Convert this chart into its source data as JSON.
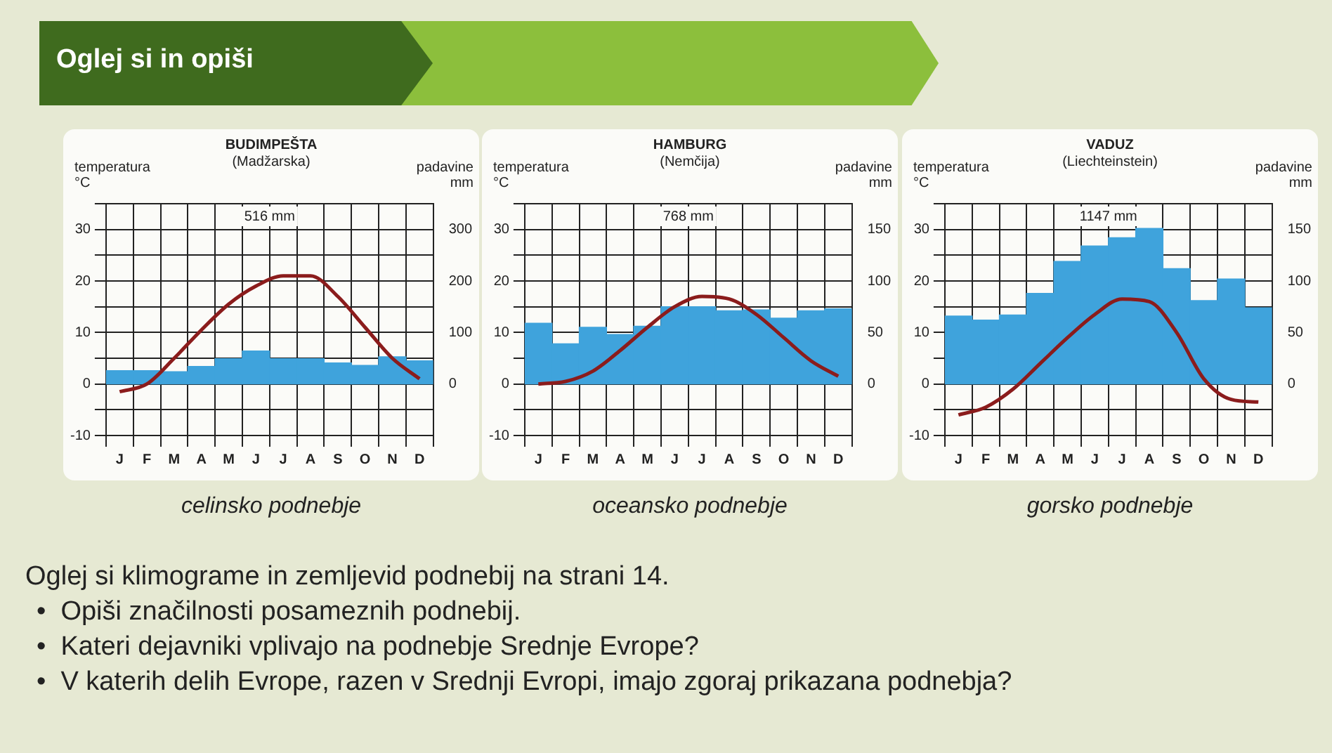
{
  "chart_data": [
    {
      "type": "bar",
      "title": "BUDIMPEŠTA",
      "subtitle": "(Madžarska)",
      "ylabel": "temperatura °C",
      "y2label": "padavine mm",
      "annotations": [
        "516 mm",
        "celinsko podnebje"
      ],
      "categories": [
        "J",
        "F",
        "M",
        "A",
        "M",
        "J",
        "J",
        "A",
        "S",
        "O",
        "N",
        "D"
      ],
      "series": [
        {
          "type": "bar",
          "axis": "y2",
          "color": "#3fa3dc",
          "values": [
            26,
            26,
            24,
            34,
            49,
            64,
            49,
            49,
            41,
            36,
            53,
            45
          ]
        },
        {
          "type": "line",
          "axis": "y",
          "color": "#8b1c1c",
          "values": [
            -1.5,
            0,
            5,
            10.5,
            15.5,
            19,
            21,
            21,
            17,
            11,
            5,
            1
          ]
        }
      ],
      "ylim": [
        -10,
        35
      ],
      "yticks": [
        -10,
        {
          "value": -5,
          "label": null
        },
        0,
        {
          "value": 5,
          "label": null
        },
        10,
        {
          "value": 15,
          "label": null
        },
        20,
        {
          "value": 25,
          "label": null
        },
        30,
        {
          "value": 35,
          "label": null
        }
      ],
      "y2lim": [
        -100,
        350
      ],
      "y2ticks": [
        0,
        100,
        200,
        300
      ],
      "grid": true,
      "legend": false
    },
    {
      "type": "bar",
      "title": "HAMBURG",
      "subtitle": "(Nemčija)",
      "ylabel": "temperatura °C",
      "y2label": "padavine mm",
      "annotations": [
        "768 mm",
        "oceansko podnebje"
      ],
      "categories": [
        "J",
        "F",
        "M",
        "A",
        "M",
        "J",
        "J",
        "A",
        "S",
        "O",
        "N",
        "D"
      ],
      "series": [
        {
          "type": "bar",
          "axis": "y2",
          "color": "#3fa3dc",
          "values": [
            59,
            39,
            55,
            48,
            56,
            75,
            75,
            71,
            72,
            64,
            71,
            73
          ]
        },
        {
          "type": "line",
          "axis": "y",
          "color": "#8b1c1c",
          "values": [
            0,
            0.5,
            2.5,
            6.5,
            11,
            15,
            17,
            16.5,
            13.5,
            9,
            4.5,
            1.5
          ]
        }
      ],
      "ylim": [
        -10,
        35
      ],
      "yticks": [
        -10,
        {
          "value": -5,
          "label": null
        },
        0,
        {
          "value": 5,
          "label": null
        },
        10,
        {
          "value": 15,
          "label": null
        },
        20,
        {
          "value": 25,
          "label": null
        },
        30,
        {
          "value": 35,
          "label": null
        }
      ],
      "y2lim": [
        -50,
        175
      ],
      "y2ticks": [
        0,
        50,
        100,
        150
      ],
      "grid": true,
      "legend": false
    },
    {
      "type": "bar",
      "title": "VADUZ",
      "subtitle": "(Liechteinstein)",
      "ylabel": "temperatura °C",
      "y2label": "padavine mm",
      "annotations": [
        "1147 mm",
        "gorsko podnebje"
      ],
      "categories": [
        "J",
        "F",
        "M",
        "A",
        "M",
        "J",
        "J",
        "A",
        "S",
        "O",
        "N",
        "D"
      ],
      "series": [
        {
          "type": "bar",
          "axis": "y2",
          "color": "#3fa3dc",
          "values": [
            66,
            62,
            67,
            88,
            119,
            134,
            142,
            151,
            112,
            81,
            102,
            74
          ]
        },
        {
          "type": "line",
          "axis": "y",
          "color": "#8b1c1c",
          "values": [
            -6,
            -4.5,
            -1,
            4,
            9,
            13.5,
            16.5,
            16,
            10,
            1,
            -3,
            -3.5
          ]
        }
      ],
      "ylim": [
        -10,
        35
      ],
      "yticks": [
        -10,
        {
          "value": -5,
          "label": null
        },
        0,
        {
          "value": 5,
          "label": null
        },
        10,
        {
          "value": 15,
          "label": null
        },
        20,
        {
          "value": 25,
          "label": null
        },
        30,
        {
          "value": 35,
          "label": null
        }
      ],
      "y2lim": [
        -50,
        175
      ],
      "y2ticks": [
        0,
        50,
        100,
        150
      ],
      "grid": true,
      "legend": false
    },
    {
      "type": "other",
      "title": "Oglej si in opiši",
      "annotations": [
        "Oglej si klimograme in zemljevid podnebij na strani 14.",
        "•  Opiši značilnosti posameznih podnebij.",
        "•  Kateri dejavniki vplivajo na podnebje Srednje Evrope?",
        "•  V katerih delih Evrope, razen v Srednji Evropi, imajo zgoraj prikazana podnebja?"
      ]
    }
  ]
}
